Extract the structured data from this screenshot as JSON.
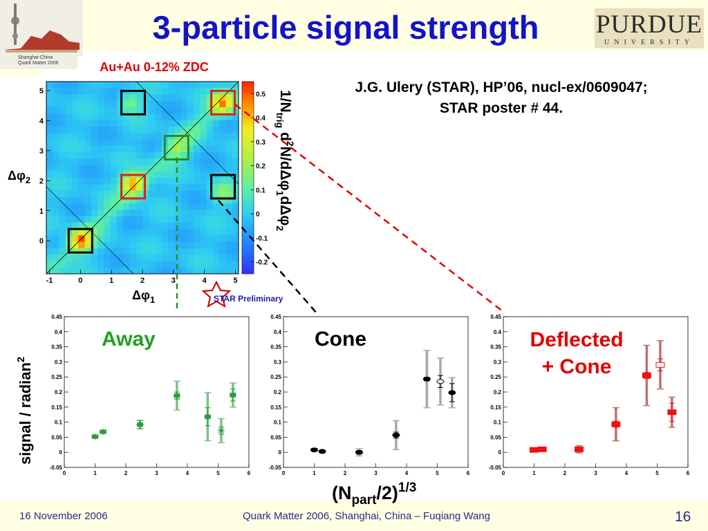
{
  "slide": {
    "title": "3-particle signal strength",
    "conference_logo_text": [
      "Shanghai-China",
      "Quark Matter 2006"
    ],
    "university_logo": {
      "name": "PURDUE",
      "sub": "UNIVERSITY"
    },
    "centrality_label": "Au+Au 0-12% ZDC",
    "reference_line1": "J.G. Ulery (STAR), HP’06, nucl-ex/0609047;",
    "reference_line2": "STAR poster # 44.",
    "star_label": "STAR Preliminary",
    "footer_date": "16 November 2006",
    "footer_center": "Quark Matter 2006, Shanghai, China – Fuqiang Wang",
    "footer_page": "16",
    "colors": {
      "title": "#1313c8",
      "away": "#22a022",
      "deflected": "#e00000",
      "footer": "#2a2a88",
      "background": "#ffffe4"
    }
  },
  "chart_data": [
    {
      "type": "heatmap",
      "panel": "2D correlation map",
      "xlabel": "Δφ₁",
      "ylabel": "Δφ₂",
      "zlabel": "1/N_trig d²N/dΔφ₁dΔφ₂",
      "x_ticks": [
        "-1",
        "0",
        "1",
        "2",
        "3",
        "4",
        "5"
      ],
      "y_ticks": [
        "0",
        "1",
        "2",
        "3",
        "4",
        "5"
      ],
      "colorbar_ticks": [
        "-0.2",
        "-0.1",
        "0",
        "0.1",
        "0.2",
        "0.3",
        "0.4",
        "0.5"
      ],
      "xlim": [
        -1.1,
        5.1
      ],
      "ylim": [
        -1.1,
        5.3
      ],
      "zlim": [
        -0.25,
        0.55
      ],
      "peaks": [
        {
          "x": 0.0,
          "y": 0.0,
          "value": 0.45
        },
        {
          "x": 1.7,
          "y": 1.9,
          "value": 0.42
        },
        {
          "x": 4.6,
          "y": 4.6,
          "value": 0.4
        },
        {
          "x": 3.1,
          "y": 3.1,
          "value": 0.15
        },
        {
          "x": 1.6,
          "y": 4.6,
          "value": 0.18
        },
        {
          "x": 4.6,
          "y": 1.6,
          "value": 0.18
        }
      ],
      "boxes": [
        {
          "center": [
            0,
            0
          ],
          "color": "black"
        },
        {
          "center": [
            1.7,
            4.6
          ],
          "color": "black"
        },
        {
          "center": [
            4.6,
            1.8
          ],
          "color": "black"
        },
        {
          "center": [
            3.1,
            3.1
          ],
          "color": "green"
        },
        {
          "center": [
            1.7,
            1.8
          ],
          "color": "red"
        },
        {
          "center": [
            4.6,
            4.6
          ],
          "color": "red"
        }
      ]
    },
    {
      "type": "scatter",
      "title": "Away",
      "xlim": [
        0,
        6
      ],
      "ylim": [
        -0.05,
        0.45
      ],
      "x_ticks": [
        "0",
        "1",
        "2",
        "3",
        "4",
        "5",
        "6"
      ],
      "y_ticks": [
        "-0.05",
        "0",
        "0.05",
        "0.1",
        "0.15",
        "0.2",
        "0.25",
        "0.3",
        "0.35",
        "0.4",
        "0.45"
      ],
      "points": [
        {
          "x": 1.0,
          "y": 0.052,
          "err": 0.004,
          "sys": 0.004
        },
        {
          "x": 1.26,
          "y": 0.068,
          "err": 0.004,
          "sys": 0.004
        },
        {
          "x": 2.46,
          "y": 0.092,
          "err": 0.014,
          "sys": 0.014
        },
        {
          "x": 3.66,
          "y": 0.188,
          "err": 0.012,
          "sys": 0.048
        },
        {
          "x": 4.66,
          "y": 0.118,
          "err": 0.03,
          "sys": 0.08
        },
        {
          "x": 5.1,
          "y": 0.072,
          "err": 0.012,
          "sys": 0.04,
          "open": true
        },
        {
          "x": 5.48,
          "y": 0.19,
          "err": 0.02,
          "sys": 0.04
        }
      ]
    },
    {
      "type": "scatter",
      "title": "Cone",
      "xlim": [
        0,
        6
      ],
      "ylim": [
        -0.05,
        0.45
      ],
      "x_ticks": [
        "0",
        "1",
        "2",
        "3",
        "4",
        "5",
        "6"
      ],
      "y_ticks": [
        "-0.05",
        "0",
        "0.05",
        "0.1",
        "0.15",
        "0.2",
        "0.25",
        "0.3",
        "0.35",
        "0.4",
        "0.45"
      ],
      "points": [
        {
          "x": 1.0,
          "y": 0.008,
          "err": 0.003,
          "sys": 0.003
        },
        {
          "x": 1.26,
          "y": 0.003,
          "err": 0.003,
          "sys": 0.003
        },
        {
          "x": 2.46,
          "y": 0.0,
          "err": 0.006,
          "sys": 0.012
        },
        {
          "x": 3.66,
          "y": 0.057,
          "err": 0.01,
          "sys": 0.048
        },
        {
          "x": 4.66,
          "y": 0.243,
          "err": 0.006,
          "sys": 0.095
        },
        {
          "x": 5.1,
          "y": 0.235,
          "err": 0.02,
          "sys": 0.078,
          "open": true
        },
        {
          "x": 5.48,
          "y": 0.198,
          "err": 0.03,
          "sys": 0.05
        }
      ]
    },
    {
      "type": "scatter",
      "title": "Deflected + Cone",
      "xlim": [
        0,
        6
      ],
      "ylim": [
        -0.05,
        0.45
      ],
      "x_ticks": [
        "0",
        "1",
        "2",
        "3",
        "4",
        "5",
        "6"
      ],
      "y_ticks": [
        "-0.05",
        "0",
        "0.05",
        "0.1",
        "0.15",
        "0.2",
        "0.25",
        "0.3",
        "0.35",
        "0.4",
        "0.45"
      ],
      "points": [
        {
          "x": 1.0,
          "y": 0.008,
          "err": 0.003,
          "sys": 0.003
        },
        {
          "x": 1.26,
          "y": 0.01,
          "err": 0.003,
          "sys": 0.003
        },
        {
          "x": 2.46,
          "y": 0.01,
          "err": 0.005,
          "sys": 0.012
        },
        {
          "x": 3.66,
          "y": 0.093,
          "err": 0.01,
          "sys": 0.055
        },
        {
          "x": 4.66,
          "y": 0.255,
          "err": 0.01,
          "sys": 0.1
        },
        {
          "x": 5.1,
          "y": 0.29,
          "err": 0.02,
          "sys": 0.08,
          "open": true
        },
        {
          "x": 5.48,
          "y": 0.133,
          "err": 0.03,
          "sys": 0.05
        }
      ]
    }
  ],
  "labels": {
    "panel1_title": "Away",
    "panel2_title": "Cone",
    "panel3_title_line1": "Deflected",
    "panel3_title_line2": "+ Cone",
    "y_axis": "signal / radian",
    "y_axis_sup": "2",
    "x_axis_main": "(N",
    "x_axis_sub": "part",
    "x_axis_tail": "/2)",
    "x_axis_sup": "1/3",
    "heat_x_sym": "Δφ",
    "heat_x_sub": "1",
    "heat_y_sym": "Δφ",
    "heat_y_sub": "2",
    "z_title": "1/N",
    "z_sub1": "trig",
    "z_mid": " d",
    "z_sup": "2",
    "z_tail": "N/dΔφ",
    "z_sub2": "1",
    "z_tail2": "dΔφ",
    "z_sub3": "2"
  }
}
